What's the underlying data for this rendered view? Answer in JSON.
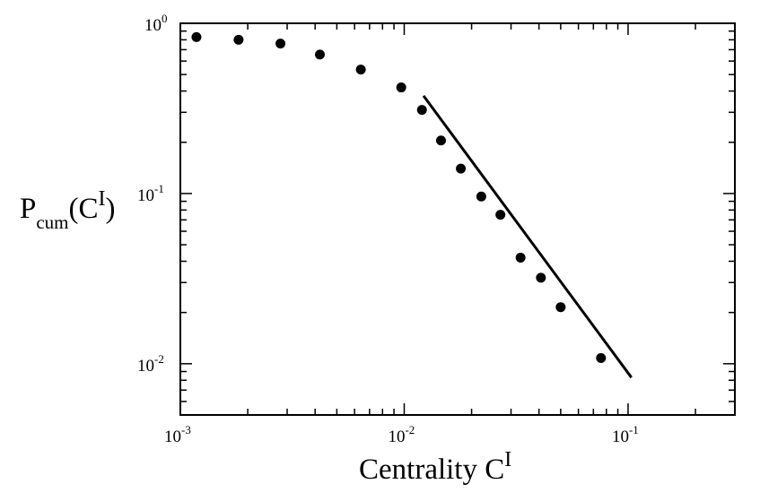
{
  "chart_data": {
    "type": "scatter",
    "xscale": "log",
    "yscale": "log",
    "xlim": [
      0.001,
      0.3
    ],
    "ylim": [
      0.005,
      1
    ],
    "x_ticks": [
      {
        "base": "10",
        "exp": "-3",
        "value": 0.001
      },
      {
        "base": "10",
        "exp": "-2",
        "value": 0.01
      },
      {
        "base": "10",
        "exp": "-1",
        "value": 0.1
      }
    ],
    "y_ticks": [
      {
        "base": "10",
        "exp": "0",
        "value": 1
      },
      {
        "base": "10",
        "exp": "-1",
        "value": 0.1
      },
      {
        "base": "10",
        "exp": "-2",
        "value": 0.01
      }
    ],
    "xlabel": {
      "main": "Centrality C",
      "sup": "I"
    },
    "ylabel": {
      "main": "P",
      "sub": "cum",
      "mid": "(C",
      "sup": "I",
      "end": ")"
    },
    "grid": false,
    "series": [
      {
        "marker": "circle",
        "x": [
          0.00118,
          0.00182,
          0.0028,
          0.0042,
          0.0064,
          0.0097,
          0.012,
          0.0146,
          0.0179,
          0.0221,
          0.0269,
          0.0331,
          0.0408,
          0.05,
          0.0757
        ],
        "y": [
          0.83,
          0.8,
          0.76,
          0.655,
          0.535,
          0.42,
          0.31,
          0.205,
          0.14,
          0.096,
          0.075,
          0.042,
          0.032,
          0.0215,
          0.0108
        ]
      }
    ],
    "fit_line": {
      "x": [
        0.0122,
        0.1035
      ],
      "y": [
        0.375,
        0.0083
      ]
    }
  }
}
